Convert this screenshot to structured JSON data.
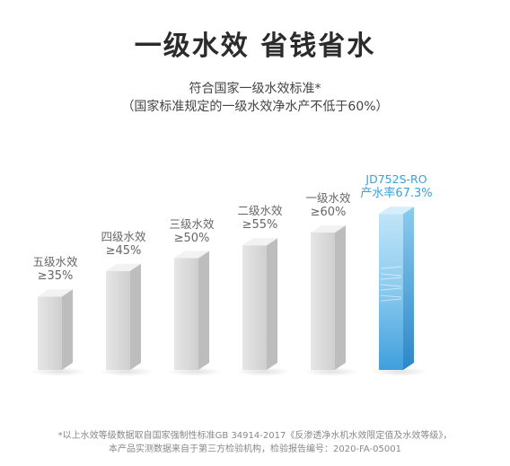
{
  "header": {
    "title": "一级水效  省钱省水",
    "subtitle": "符合国家一级水效标准*",
    "subtitle_note": "（国家标准规定的一级水效净水产不低于60%）"
  },
  "chart_data": {
    "type": "bar",
    "categories": [
      "五级水效",
      "四级水效",
      "三级水效",
      "二级水效",
      "一级水效",
      "JD752S-RO"
    ],
    "value_labels": [
      "≥35%",
      "≥45%",
      "≥50%",
      "≥55%",
      "≥60%",
      "产水率67.3%"
    ],
    "values": [
      35,
      45,
      50,
      55,
      60,
      67.3
    ],
    "highlight_index": 5,
    "colors": {
      "bar_front": "#d9d9d9",
      "bar_side": "#bdbdbd",
      "bar_top": "#f2f2f2",
      "highlight_front": "#7fc4ec",
      "highlight_side": "#4ea7dc",
      "highlight_top": "#d6eefb",
      "highlight_text": "#3d9fd8"
    }
  },
  "footnote": {
    "line1": "*以上水效等级数据取自国家强制性标准GB 34914-2017《反渗透净水机水效限定值及水效等级》，",
    "line2": "本产品实测数据来自于第三方检验机构，检验报告编号：2020-FA-05001"
  }
}
